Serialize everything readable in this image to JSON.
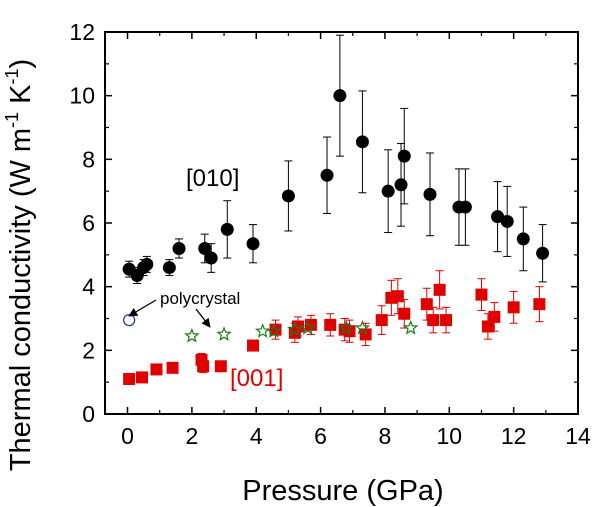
{
  "chart_data": {
    "type": "scatter",
    "xlabel": "Pressure (GPa)",
    "ylabel_parts": [
      "Thermal conductivity (W m",
      "-1",
      " K",
      "-1",
      ")"
    ],
    "xlim": [
      -0.7,
      14
    ],
    "ylim": [
      0,
      12
    ],
    "xticks": [
      0,
      2,
      4,
      6,
      8,
      10,
      12,
      14
    ],
    "yticks": [
      0,
      2,
      4,
      6,
      8,
      10,
      12
    ],
    "series": [
      {
        "name": "[010]",
        "marker": "circle",
        "color": "#000000",
        "points": [
          {
            "x": 0.05,
            "y": 4.55,
            "err": 0.25
          },
          {
            "x": 0.3,
            "y": 4.35,
            "err": 0.25
          },
          {
            "x": 0.5,
            "y": 4.6,
            "err": 0.25
          },
          {
            "x": 0.6,
            "y": 4.7,
            "err": 0.25
          },
          {
            "x": 1.3,
            "y": 4.6,
            "err": 0.25
          },
          {
            "x": 1.6,
            "y": 5.2,
            "err": 0.3
          },
          {
            "x": 2.4,
            "y": 5.2,
            "err": 0.45
          },
          {
            "x": 2.6,
            "y": 4.9,
            "err": 0.45
          },
          {
            "x": 3.1,
            "y": 5.8,
            "err": 0.9
          },
          {
            "x": 3.9,
            "y": 5.35,
            "err": 0.6
          },
          {
            "x": 5.0,
            "y": 6.85,
            "err": 1.1
          },
          {
            "x": 6.2,
            "y": 7.5,
            "err": 1.2
          },
          {
            "x": 6.6,
            "y": 10.0,
            "err": 1.9
          },
          {
            "x": 7.3,
            "y": 8.55,
            "err": 1.6
          },
          {
            "x": 8.1,
            "y": 7.0,
            "err": 1.3
          },
          {
            "x": 8.5,
            "y": 7.2,
            "err": 1.3
          },
          {
            "x": 8.6,
            "y": 8.1,
            "err": 1.5
          },
          {
            "x": 9.4,
            "y": 6.9,
            "err": 1.3
          },
          {
            "x": 10.3,
            "y": 6.5,
            "err": 1.2
          },
          {
            "x": 10.5,
            "y": 6.5,
            "err": 1.2
          },
          {
            "x": 11.5,
            "y": 6.2,
            "err": 1.1
          },
          {
            "x": 11.8,
            "y": 6.05,
            "err": 1.1
          },
          {
            "x": 12.3,
            "y": 5.5,
            "err": 1.0
          },
          {
            "x": 12.9,
            "y": 5.05,
            "err": 0.9
          }
        ]
      },
      {
        "name": "[001]",
        "marker": "square",
        "color": "#e00000",
        "points": [
          {
            "x": 0.05,
            "y": 1.1,
            "err": 0.05
          },
          {
            "x": 0.45,
            "y": 1.15,
            "err": 0.05
          },
          {
            "x": 0.9,
            "y": 1.4,
            "err": 0.1
          },
          {
            "x": 1.4,
            "y": 1.45,
            "err": 0.1
          },
          {
            "x": 2.3,
            "y": 1.7,
            "err": 0.2
          },
          {
            "x": 2.35,
            "y": 1.5,
            "err": 0.2
          },
          {
            "x": 2.9,
            "y": 1.5,
            "err": 0.1
          },
          {
            "x": 3.9,
            "y": 2.15,
            "err": 0.15
          },
          {
            "x": 4.6,
            "y": 2.65,
            "err": 0.3
          },
          {
            "x": 5.2,
            "y": 2.55,
            "err": 0.3
          },
          {
            "x": 5.3,
            "y": 2.75,
            "err": 0.3
          },
          {
            "x": 5.7,
            "y": 2.8,
            "err": 0.3
          },
          {
            "x": 6.3,
            "y": 2.8,
            "err": 0.35
          },
          {
            "x": 6.75,
            "y": 2.65,
            "err": 0.35
          },
          {
            "x": 6.9,
            "y": 2.6,
            "err": 0.35
          },
          {
            "x": 7.4,
            "y": 2.5,
            "err": 0.35
          },
          {
            "x": 7.9,
            "y": 2.95,
            "err": 0.45
          },
          {
            "x": 8.2,
            "y": 3.65,
            "err": 0.55
          },
          {
            "x": 8.4,
            "y": 3.7,
            "err": 0.55
          },
          {
            "x": 8.6,
            "y": 3.15,
            "err": 0.45
          },
          {
            "x": 9.3,
            "y": 3.45,
            "err": 0.5
          },
          {
            "x": 9.5,
            "y": 2.95,
            "err": 0.4
          },
          {
            "x": 9.7,
            "y": 3.9,
            "err": 0.6
          },
          {
            "x": 9.9,
            "y": 2.95,
            "err": 0.4
          },
          {
            "x": 11.0,
            "y": 3.75,
            "err": 0.5
          },
          {
            "x": 11.2,
            "y": 2.75,
            "err": 0.4
          },
          {
            "x": 11.4,
            "y": 3.05,
            "err": 0.45
          },
          {
            "x": 12.0,
            "y": 3.35,
            "err": 0.5
          },
          {
            "x": 12.8,
            "y": 3.45,
            "err": 0.55
          }
        ]
      },
      {
        "name": "stars",
        "marker": "star",
        "color": "#1a7a1a",
        "points": [
          {
            "x": 2.0,
            "y": 2.45
          },
          {
            "x": 3.0,
            "y": 2.5
          },
          {
            "x": 4.2,
            "y": 2.6
          },
          {
            "x": 4.55,
            "y": 2.6
          },
          {
            "x": 5.2,
            "y": 2.65
          },
          {
            "x": 5.6,
            "y": 2.7
          },
          {
            "x": 6.8,
            "y": 2.7
          },
          {
            "x": 7.3,
            "y": 2.7
          },
          {
            "x": 8.8,
            "y": 2.7
          }
        ]
      },
      {
        "name": "polycrystal",
        "marker": "open-circle",
        "color": "#1f3fbf",
        "points": [
          {
            "x": 0.05,
            "y": 2.95
          }
        ]
      }
    ],
    "annotations": {
      "label_010": "[010]",
      "label_001": "[001]",
      "label_poly": "polycrystal"
    }
  }
}
